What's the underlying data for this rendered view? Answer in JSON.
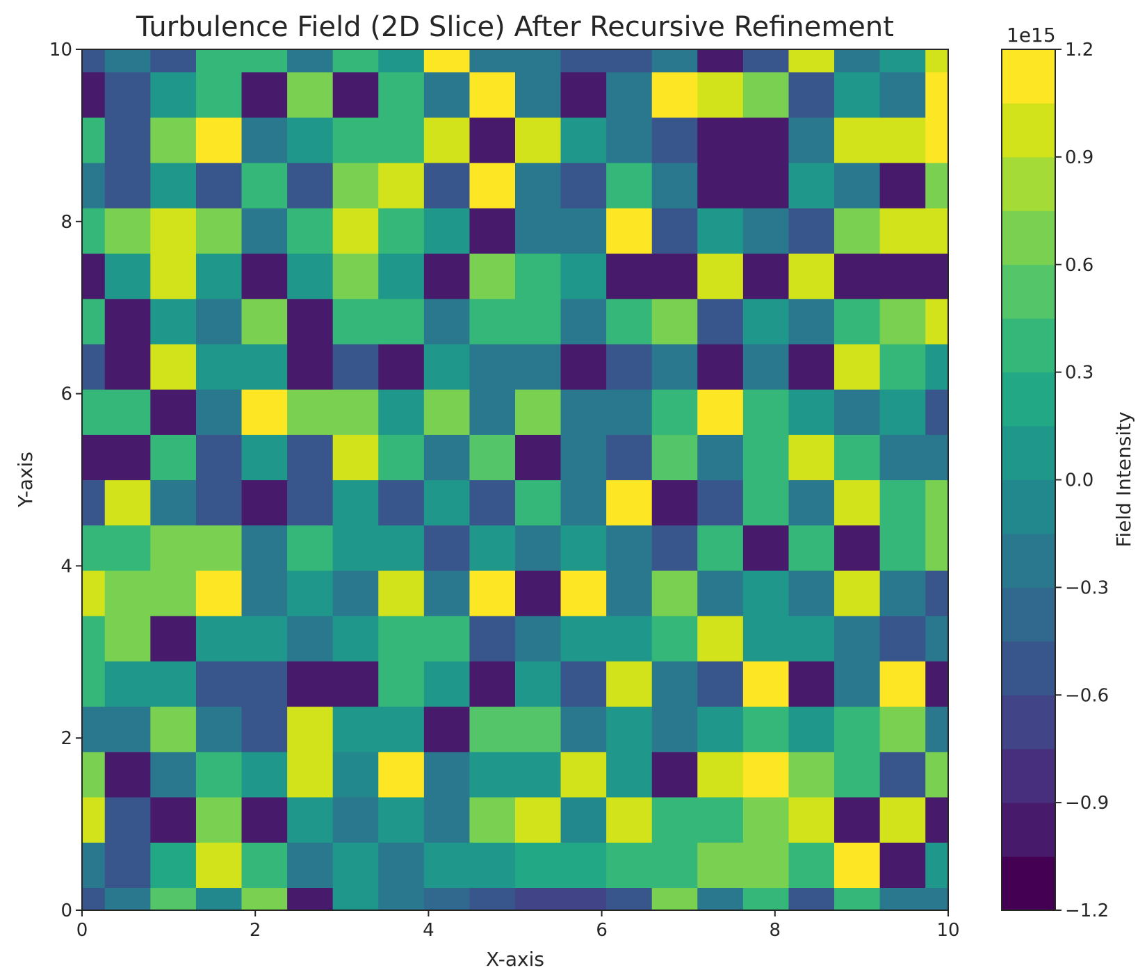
{
  "chart_data": {
    "type": "heatmap",
    "title": "Turbulence Field (2D Slice) After Recursive Refinement",
    "xlabel": "X-axis",
    "ylabel": "Y-axis",
    "xlim": [
      0,
      10
    ],
    "ylim": [
      0,
      10
    ],
    "x_ticks": [
      "0",
      "2",
      "4",
      "6",
      "8",
      "10"
    ],
    "y_ticks": [
      "0",
      "2",
      "4",
      "6",
      "8",
      "10"
    ],
    "grid": false,
    "colormap": "viridis",
    "colorbar": {
      "label": "Field Intensity",
      "exponent_label": "1e15",
      "vmin": -1.2,
      "vmax": 1.2,
      "levels": 16,
      "ticks": [
        "−1.2",
        "−0.9",
        "−0.6",
        "−0.3",
        "0.0",
        "0.3",
        "0.6",
        "0.9",
        "1.2"
      ],
      "position": "right"
    },
    "grid_x": [
      0,
      0.526,
      1.053,
      1.579,
      2.105,
      2.632,
      3.158,
      3.684,
      4.211,
      4.737,
      5.263,
      5.789,
      6.316,
      6.842,
      7.368,
      7.895,
      8.421,
      8.947,
      9.474,
      10
    ],
    "grid_y": [
      0,
      0.526,
      1.053,
      1.579,
      2.105,
      2.632,
      3.158,
      3.684,
      4.211,
      4.737,
      5.263,
      5.789,
      6.316,
      6.842,
      7.368,
      7.895,
      8.421,
      8.947,
      9.474,
      10
    ],
    "z_rows": [
      [
        -0.6,
        -0.3,
        0.5,
        -0.1,
        0.6,
        -0.9,
        0.0,
        -0.3,
        -0.4,
        -0.6,
        -0.7,
        -0.7,
        -0.6,
        0.6,
        -0.3,
        0.3,
        -0.6,
        0.3,
        -0.3,
        -0.3
      ],
      [
        -0.3,
        -0.6,
        0.2,
        0.9,
        0.3,
        -0.3,
        0.0,
        -0.3,
        0.0,
        0.0,
        0.2,
        0.2,
        0.3,
        0.3,
        0.6,
        0.6,
        0.3,
        1.1,
        -1.0,
        0.0
      ],
      [
        1.0,
        -0.6,
        -0.9,
        0.6,
        -0.9,
        0.0,
        -0.3,
        0.1,
        -0.3,
        0.6,
        0.9,
        -0.1,
        1.0,
        0.3,
        0.3,
        0.6,
        0.9,
        -0.9,
        0.9,
        -0.9
      ],
      [
        0.6,
        -0.9,
        -0.3,
        0.3,
        0.0,
        0.9,
        -0.1,
        1.1,
        -0.3,
        0.0,
        0.0,
        0.9,
        0.0,
        -0.9,
        0.9,
        1.2,
        0.6,
        0.3,
        -0.6,
        0.6
      ],
      [
        -0.3,
        -0.3,
        0.6,
        -0.3,
        -0.6,
        0.9,
        0.0,
        0.0,
        -0.9,
        0.5,
        0.5,
        -0.3,
        0.0,
        -0.3,
        0.0,
        0.3,
        0.0,
        0.3,
        0.6,
        -0.3
      ],
      [
        0.3,
        0.0,
        0.0,
        -0.6,
        -0.6,
        -0.9,
        -1.0,
        0.3,
        0.0,
        -1.0,
        0.0,
        -0.6,
        1.0,
        -0.3,
        -0.6,
        1.1,
        -0.9,
        -0.3,
        1.1,
        -0.9
      ],
      [
        0.3,
        0.6,
        -0.9,
        0.0,
        0.0,
        -0.3,
        0.0,
        0.3,
        0.3,
        -0.6,
        -0.3,
        0.0,
        0.0,
        0.3,
        0.9,
        0.0,
        0.0,
        -0.3,
        -0.6,
        -0.3
      ],
      [
        0.9,
        0.6,
        0.6,
        1.1,
        -0.3,
        0.0,
        -0.3,
        0.9,
        -0.3,
        1.1,
        -0.9,
        1.1,
        -0.3,
        0.6,
        -0.3,
        0.0,
        -0.3,
        0.9,
        -0.3,
        -0.6
      ],
      [
        0.3,
        0.3,
        0.6,
        0.6,
        -0.3,
        0.3,
        0.0,
        0.0,
        -0.6,
        0.0,
        -0.3,
        0.0,
        -0.3,
        -0.6,
        0.3,
        -0.9,
        0.3,
        -0.9,
        0.3,
        0.6
      ],
      [
        -0.6,
        0.9,
        -0.3,
        -0.6,
        -0.9,
        -0.6,
        0.0,
        -0.6,
        0.0,
        -0.6,
        0.3,
        -0.3,
        1.1,
        -0.9,
        -0.6,
        0.3,
        -0.3,
        1.0,
        0.3,
        0.6
      ],
      [
        -0.9,
        -0.9,
        0.3,
        -0.6,
        0.0,
        -0.6,
        0.9,
        0.3,
        -0.3,
        0.5,
        -0.9,
        -0.3,
        -0.6,
        0.5,
        -0.3,
        0.3,
        0.9,
        0.3,
        -0.3,
        -0.3
      ],
      [
        0.3,
        0.3,
        -1.0,
        -0.3,
        1.1,
        0.6,
        0.6,
        0.0,
        0.6,
        -0.3,
        0.6,
        -0.3,
        -0.3,
        0.3,
        1.1,
        0.3,
        0.0,
        -0.3,
        0.0,
        -0.6
      ],
      [
        -0.6,
        -0.9,
        0.9,
        0.0,
        0.0,
        -0.9,
        -0.6,
        -0.9,
        0.0,
        -0.3,
        -0.3,
        -1.0,
        -0.6,
        -0.3,
        -0.9,
        -0.3,
        -0.9,
        0.9,
        0.3,
        0.0
      ],
      [
        0.3,
        -0.9,
        0.0,
        -0.3,
        0.6,
        -1.0,
        0.3,
        0.3,
        -0.3,
        0.3,
        0.3,
        -0.3,
        0.3,
        0.6,
        -0.6,
        0.0,
        -0.3,
        0.3,
        0.6,
        1.0
      ],
      [
        -1.0,
        0.0,
        1.0,
        0.0,
        -0.9,
        0.0,
        0.6,
        0.0,
        -1.0,
        0.6,
        0.3,
        0.0,
        -1.0,
        -0.9,
        0.9,
        -0.9,
        0.9,
        -1.0,
        -1.0,
        -1.0
      ],
      [
        0.3,
        0.6,
        0.9,
        0.6,
        -0.3,
        0.3,
        0.9,
        0.3,
        0.0,
        -0.9,
        -0.3,
        -0.3,
        1.1,
        -0.6,
        0.0,
        -0.3,
        -0.6,
        0.6,
        0.9,
        0.9
      ],
      [
        -0.3,
        -0.6,
        0.0,
        -0.6,
        0.3,
        -0.6,
        0.6,
        0.9,
        -0.6,
        1.1,
        -0.3,
        -0.6,
        0.3,
        -0.3,
        -0.9,
        -1.0,
        0.0,
        -0.3,
        -0.9,
        0.6
      ],
      [
        0.3,
        -0.6,
        0.6,
        1.1,
        -0.3,
        0.0,
        0.3,
        0.3,
        0.9,
        -1.0,
        0.9,
        0.0,
        -0.3,
        -0.6,
        -0.9,
        -1.0,
        -0.3,
        0.9,
        0.9,
        1.1
      ],
      [
        -0.9,
        -0.6,
        0.0,
        0.3,
        -1.0,
        0.6,
        -1.0,
        0.3,
        -0.3,
        1.1,
        -0.3,
        -1.0,
        -0.3,
        1.1,
        0.9,
        0.6,
        -0.6,
        0.0,
        -0.3,
        1.1
      ],
      [
        -0.6,
        -0.3,
        -0.6,
        0.3,
        0.3,
        -0.3,
        0.3,
        0.0,
        1.1,
        -0.3,
        -0.3,
        -0.6,
        -0.6,
        -0.3,
        -0.9,
        -0.6,
        0.9,
        -0.3,
        0.0,
        0.9
      ]
    ]
  }
}
